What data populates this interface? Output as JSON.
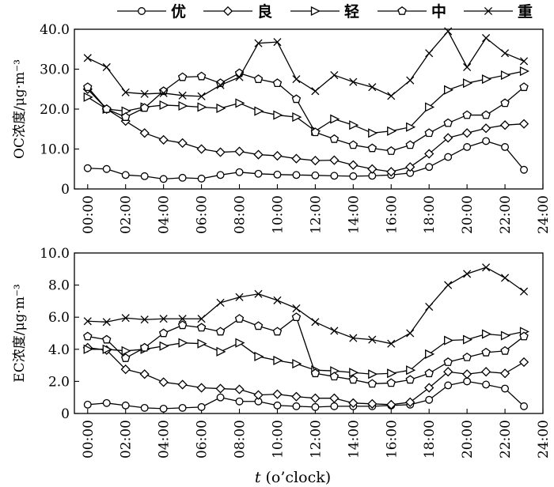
{
  "chart_data": {
    "type": "line",
    "legend": {
      "placement": "top",
      "entries": [
        {
          "label": "优",
          "marker": "circle"
        },
        {
          "label": "良",
          "marker": "diamond"
        },
        {
          "label": "轻",
          "marker": "triangle-right"
        },
        {
          "label": "中",
          "marker": "pentagon"
        },
        {
          "label": "重",
          "marker": "x"
        }
      ]
    },
    "xlabel": {
      "italic": "t",
      "rest": " (o’clock)"
    },
    "x": [
      0,
      1,
      2,
      3,
      4,
      5,
      6,
      7,
      8,
      9,
      10,
      11,
      12,
      13,
      14,
      15,
      16,
      17,
      18,
      19,
      20,
      21,
      22,
      23
    ],
    "xlim": [
      -0.7,
      24
    ],
    "xticks": [
      0,
      2,
      4,
      6,
      8,
      10,
      12,
      14,
      16,
      18,
      20,
      22,
      24
    ],
    "xtick_labels": [
      "00:00",
      "02:00",
      "04:00",
      "06:00",
      "08:00",
      "10:00",
      "12:00",
      "14:00",
      "16:00",
      "18:00",
      "20:00",
      "22:00",
      "24:00"
    ],
    "panels": [
      {
        "ylabel": "OC浓度/μg·m⁻³",
        "ylim": [
          0,
          40
        ],
        "yticks": [
          0,
          10,
          20,
          30,
          40
        ],
        "ytick_labels": [
          "0",
          "10.0",
          "20.0",
          "30.0",
          "40.0"
        ],
        "series": [
          {
            "name": "优",
            "values": [
              5.2,
              5.0,
              3.5,
              3.2,
              2.5,
              2.8,
              2.6,
              3.5,
              4.2,
              3.8,
              3.6,
              3.5,
              3.4,
              3.3,
              3.2,
              3.3,
              3.5,
              4.0,
              5.5,
              8.0,
              10.5,
              12.0,
              10.5,
              4.8
            ]
          },
          {
            "name": "良",
            "values": [
              25.0,
              20.0,
              17.0,
              14.0,
              12.3,
              11.5,
              10.0,
              9.2,
              9.4,
              8.6,
              8.3,
              7.6,
              7.1,
              7.2,
              6.0,
              5.0,
              4.3,
              5.5,
              8.8,
              12.8,
              14.0,
              15.2,
              16.0,
              16.3
            ]
          },
          {
            "name": "轻",
            "values": [
              23.0,
              20.0,
              19.5,
              20.5,
              21.0,
              20.8,
              20.5,
              20.2,
              21.5,
              19.5,
              18.5,
              18.0,
              14.5,
              17.5,
              16.0,
              14.0,
              14.5,
              15.5,
              20.5,
              24.8,
              26.5,
              27.5,
              28.5,
              29.5
            ]
          },
          {
            "name": "中",
            "values": [
              25.5,
              20.0,
              18.0,
              20.3,
              24.5,
              28.0,
              28.2,
              26.5,
              29.0,
              27.5,
              26.5,
              22.5,
              14.2,
              12.5,
              11.0,
              10.2,
              9.5,
              11.0,
              14.0,
              16.5,
              18.5,
              18.5,
              21.5,
              25.5
            ]
          },
          {
            "name": "重",
            "values": [
              32.8,
              30.5,
              24.2,
              23.8,
              24.0,
              23.4,
              23.2,
              26.0,
              28.0,
              36.5,
              36.8,
              27.5,
              24.5,
              28.5,
              26.8,
              25.5,
              23.3,
              27.2,
              34.0,
              39.5,
              30.5,
              37.8,
              34.0,
              32.0
            ]
          }
        ]
      },
      {
        "ylabel": "EC浓度/μg·m⁻³",
        "ylim": [
          0,
          10
        ],
        "yticks": [
          0,
          2,
          4,
          6,
          8,
          10
        ],
        "ytick_labels": [
          "0",
          "2.0",
          "4.0",
          "6.0",
          "8.0",
          "10.0"
        ],
        "series": [
          {
            "name": "优",
            "values": [
              0.55,
              0.65,
              0.5,
              0.35,
              0.3,
              0.35,
              0.4,
              1.0,
              0.75,
              0.75,
              0.5,
              0.45,
              0.4,
              0.45,
              0.45,
              0.45,
              0.5,
              0.55,
              0.85,
              1.75,
              2.0,
              1.8,
              1.55,
              0.45
            ]
          },
          {
            "name": "良",
            "values": [
              4.1,
              3.95,
              2.75,
              2.45,
              1.95,
              1.8,
              1.6,
              1.55,
              1.5,
              1.15,
              1.2,
              1.05,
              0.95,
              0.95,
              0.65,
              0.6,
              0.55,
              0.7,
              1.6,
              2.6,
              2.45,
              2.6,
              2.5,
              3.2
            ]
          },
          {
            "name": "轻",
            "values": [
              4.0,
              4.0,
              3.9,
              4.0,
              4.2,
              4.4,
              4.35,
              3.85,
              4.4,
              3.55,
              3.3,
              3.1,
              2.7,
              2.65,
              2.55,
              2.45,
              2.5,
              2.7,
              3.7,
              4.55,
              4.6,
              4.95,
              4.85,
              5.1
            ]
          },
          {
            "name": "中",
            "values": [
              4.8,
              4.6,
              3.45,
              4.1,
              5.0,
              5.5,
              5.35,
              5.1,
              5.9,
              5.45,
              5.1,
              6.0,
              2.5,
              2.3,
              2.1,
              1.85,
              1.9,
              2.1,
              2.5,
              3.2,
              3.5,
              3.8,
              3.9,
              4.8
            ]
          },
          {
            "name": "重",
            "values": [
              5.75,
              5.7,
              5.95,
              5.85,
              5.9,
              5.9,
              5.9,
              6.9,
              7.25,
              7.45,
              7.05,
              6.55,
              5.7,
              5.15,
              4.7,
              4.6,
              4.35,
              5.0,
              6.65,
              8.0,
              8.7,
              9.1,
              8.45,
              7.6
            ]
          }
        ]
      }
    ]
  }
}
